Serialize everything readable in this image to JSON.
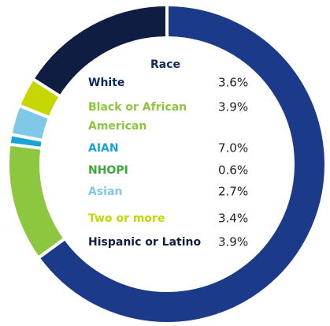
{
  "chart_data": {
    "type": "pie",
    "donut": true,
    "values": [
      65,
      12,
      1,
      3,
      3,
      16
    ],
    "colors": [
      "#1b3a8a",
      "#8dc63f",
      "#1aa3d9",
      "#7fc8e8",
      "#c5d600",
      "#0f1d42"
    ],
    "legend": {
      "title": "Race",
      "items": [
        {
          "label": "White",
          "value_text": "3.6%",
          "color": "#0d2a5c"
        },
        {
          "label": "Black or African American",
          "value_text": "3.9%",
          "color": "#8dc63f"
        },
        {
          "label": "AIAN",
          "value_text": "7.0%",
          "color": "#1aa3d9"
        },
        {
          "label": "NHOPI",
          "value_text": "0.6%",
          "color": "#3aaa35"
        },
        {
          "label": "Asian",
          "value_text": "2.7%",
          "color": "#7fc8e8"
        },
        {
          "label": "Two or more",
          "value_text": "3.4%",
          "color": "#c5d600"
        },
        {
          "label": "Hispanic or Latino",
          "value_text": "3.9%",
          "color": "#0f1d3f"
        }
      ]
    }
  }
}
